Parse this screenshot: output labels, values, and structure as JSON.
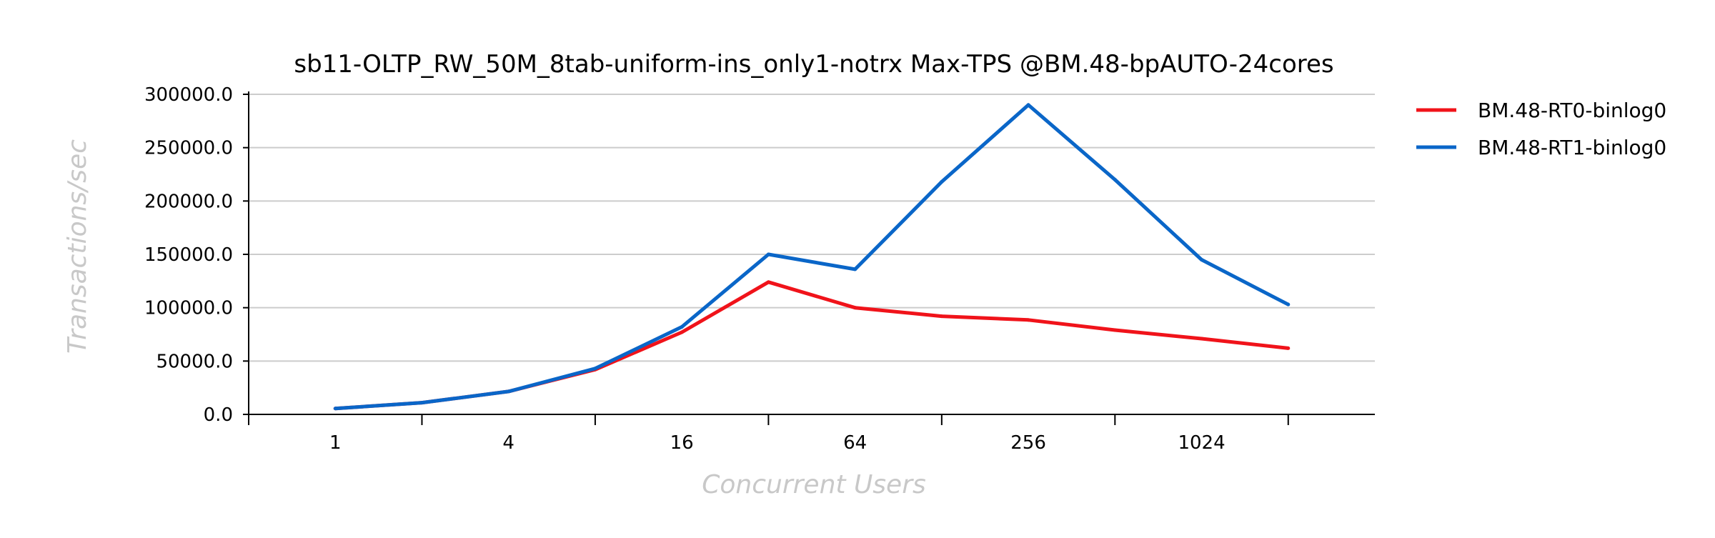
{
  "chart_data": {
    "type": "line",
    "title": "sb11-OLTP_RW_50M_8tab-uniform-ins_only1-notrx Max-TPS @BM.48-bpAUTO-24cores",
    "xlabel": "Concurrent Users",
    "ylabel": "Transactions/sec",
    "x_scale": "log2",
    "x": [
      1,
      2,
      4,
      8,
      16,
      32,
      64,
      128,
      256,
      512,
      1024,
      2048
    ],
    "x_tick_labels": [
      "1",
      "4",
      "16",
      "64",
      "256",
      "1024"
    ],
    "x_tick_label_values": [
      1,
      4,
      16,
      64,
      256,
      1024
    ],
    "x_tick_marks": [
      0.5,
      2,
      8,
      32,
      128,
      512,
      2048
    ],
    "xlim": [
      0.5,
      4096
    ],
    "ylim": [
      0,
      300000
    ],
    "y_ticks": [
      0,
      50000,
      100000,
      150000,
      200000,
      250000,
      300000
    ],
    "y_tick_labels": [
      "0.0",
      "50000.0",
      "100000.0",
      "150000.0",
      "200000.0",
      "250000.0",
      "300000.0"
    ],
    "grid": "horizontal",
    "legend_position": "right",
    "series": [
      {
        "name": "BM.48-RT0-binlog0",
        "color": "#f0131a",
        "values": [
          5500,
          11000,
          21500,
          42000,
          77000,
          124000,
          100000,
          92000,
          88500,
          79000,
          71000,
          62000
        ]
      },
      {
        "name": "BM.48-RT1-binlog0",
        "color": "#0a66c8",
        "values": [
          5500,
          11000,
          21500,
          43000,
          82000,
          150000,
          136000,
          218000,
          290000,
          220000,
          145000,
          103000
        ]
      }
    ]
  }
}
